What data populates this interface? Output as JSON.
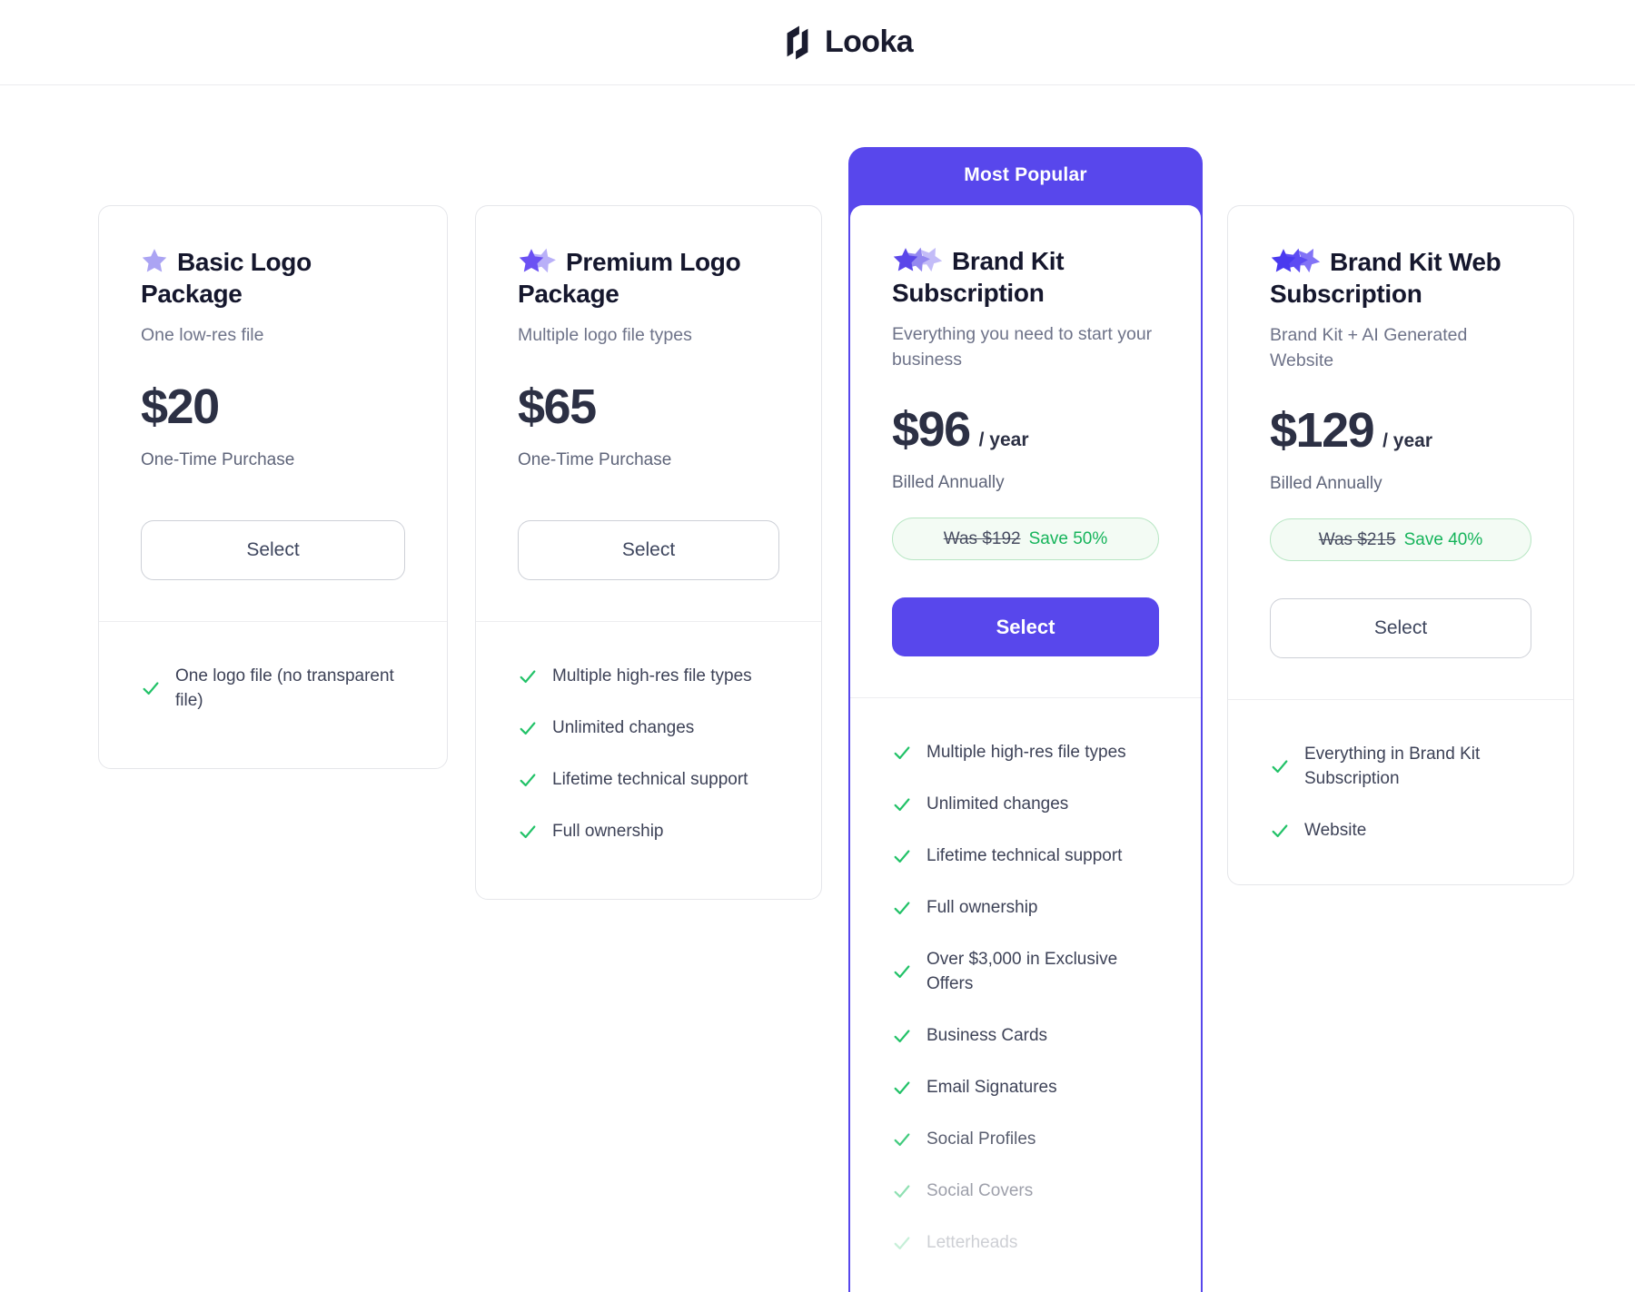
{
  "colors": {
    "accent_purple": "#5847EC",
    "check_green": "#22C268",
    "save_green": "#16B45B",
    "badge_bg": "#F3FBF4",
    "badge_border": "#B7E6C3"
  },
  "header": {
    "brand": "Looka"
  },
  "cards": [
    {
      "title": "Basic Logo Package",
      "subtitle": "One low-res file",
      "price": "$20",
      "price_suffix": "",
      "term": "One-Time Purchase",
      "select_label": "Select",
      "star_colors": [
        "#ABA4F3"
      ],
      "features": [
        {
          "text": "One logo file (no transparent file)"
        }
      ]
    },
    {
      "title": "Premium Logo Package",
      "subtitle": "Multiple logo file types",
      "price": "$65",
      "price_suffix": "",
      "term": "One-Time Purchase",
      "select_label": "Select",
      "star_colors": [
        "#6B51F3",
        "#B9B0F8"
      ],
      "features": [
        {
          "text": "Multiple high-res file types"
        },
        {
          "text": "Unlimited changes"
        },
        {
          "text": "Lifetime technical support"
        },
        {
          "text": "Full ownership"
        }
      ]
    },
    {
      "banner": "Most Popular",
      "title": "Brand Kit Subscription",
      "subtitle": "Everything you need to start your business",
      "price": "$96",
      "price_suffix": "/ year",
      "term": "Billed Annually",
      "discount": {
        "was": "Was $192",
        "save": "Save 50%"
      },
      "select_label": "Select",
      "star_colors": [
        "#5B47E9",
        "#9488F0",
        "#C3BCF8"
      ],
      "features": [
        {
          "text": "Multiple high-res file types"
        },
        {
          "text": "Unlimited changes"
        },
        {
          "text": "Lifetime technical support"
        },
        {
          "text": "Full ownership"
        },
        {
          "text": "Over $3,000 in Exclusive Offers"
        },
        {
          "text": "Business Cards"
        },
        {
          "text": "Email Signatures"
        },
        {
          "text": "Social Profiles",
          "opacity": 0.85
        },
        {
          "text": "Social Covers",
          "opacity": 0.5
        },
        {
          "text": "Letterheads",
          "opacity": 0.25
        }
      ]
    },
    {
      "title": "Brand Kit Web Subscription",
      "subtitle": "Brand Kit + AI Generated Website",
      "price": "$129",
      "price_suffix": "/ year",
      "term": "Billed Annually",
      "discount": {
        "was": "Was $215",
        "save": "Save 40%"
      },
      "select_label": "Select",
      "star_colors": [
        "#4A3AEF",
        "#5D4CF3",
        "#8273F6"
      ],
      "features": [
        {
          "text": "Everything in Brand Kit Subscription"
        },
        {
          "text": "Website"
        }
      ]
    }
  ]
}
